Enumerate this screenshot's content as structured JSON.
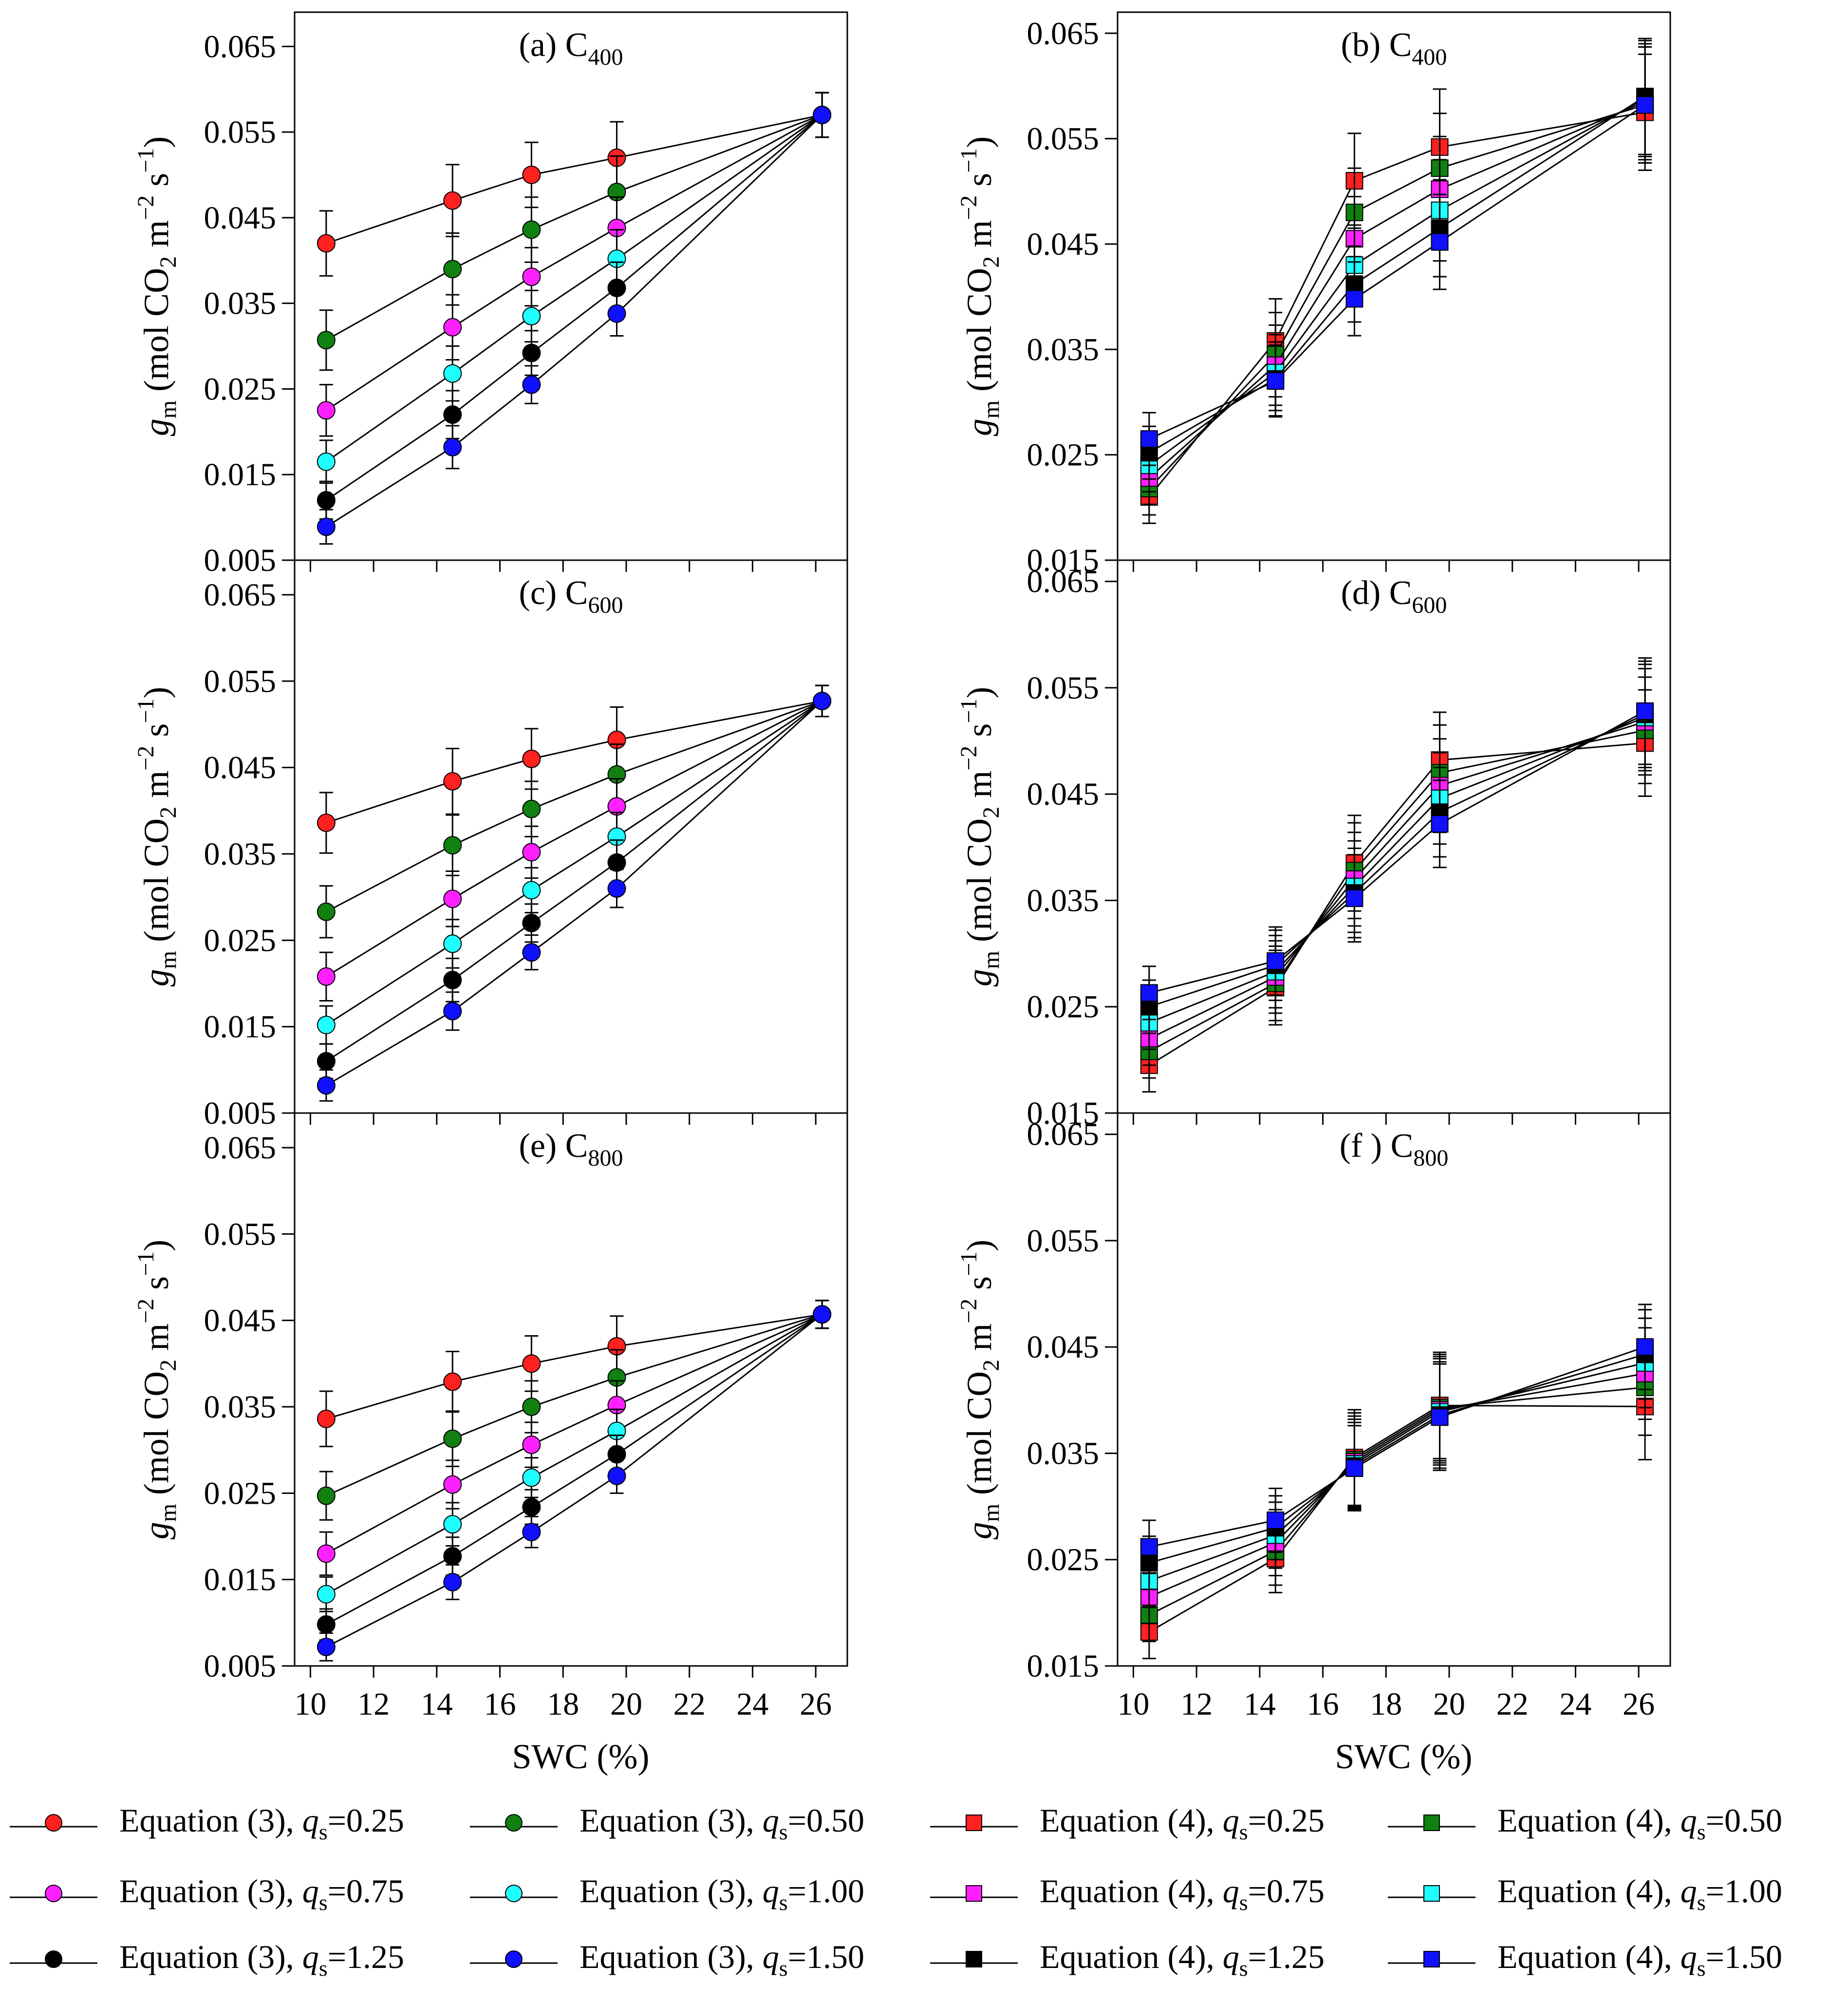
{
  "x_axis": {
    "label": "SWC (%)",
    "ticks": [
      10,
      12,
      14,
      16,
      18,
      20,
      22,
      24,
      26
    ],
    "range": [
      9.5,
      27.0
    ]
  },
  "y_axis_label": {
    "symbol": "g",
    "symbol_sub": "m",
    "unit_open": " (mol CO",
    "unit_co2_sub": "2",
    "unit_m": " m",
    "unit_m_exp": "−2",
    "unit_s": " s",
    "unit_s_exp": "−1",
    "unit_close": ")"
  },
  "colors": {
    "qs_0.25": "#ff2020",
    "qs_0.50": "#108010",
    "qs_0.75": "#ff20ff",
    "qs_1.00": "#20ffff",
    "qs_1.25": "#000000",
    "qs_1.50": "#1010ff"
  },
  "legend": {
    "entries": [
      {
        "equation": "Equation (3), ",
        "q": "q",
        "sub": "s",
        "value": "=0.25",
        "marker": "circle",
        "color_key": "qs_0.25"
      },
      {
        "equation": "Equation (3), ",
        "q": "q",
        "sub": "s",
        "value": "=0.50",
        "marker": "circle",
        "color_key": "qs_0.50"
      },
      {
        "equation": "Equation (4), ",
        "q": "q",
        "sub": "s",
        "value": "=0.25",
        "marker": "square",
        "color_key": "qs_0.25"
      },
      {
        "equation": "Equation (4), ",
        "q": "q",
        "sub": "s",
        "value": "=0.50",
        "marker": "square",
        "color_key": "qs_0.50"
      },
      {
        "equation": "Equation (3), ",
        "q": "q",
        "sub": "s",
        "value": "=0.75",
        "marker": "circle",
        "color_key": "qs_0.75"
      },
      {
        "equation": "Equation (3), ",
        "q": "q",
        "sub": "s",
        "value": "=1.00",
        "marker": "circle",
        "color_key": "qs_1.00"
      },
      {
        "equation": "Equation (4), ",
        "q": "q",
        "sub": "s",
        "value": "=0.75",
        "marker": "square",
        "color_key": "qs_0.75"
      },
      {
        "equation": "Equation (4), ",
        "q": "q",
        "sub": "s",
        "value": "=1.00",
        "marker": "square",
        "color_key": "qs_1.00"
      },
      {
        "equation": "Equation (3), ",
        "q": "q",
        "sub": "s",
        "value": "=1.25",
        "marker": "circle",
        "color_key": "qs_1.25"
      },
      {
        "equation": "Equation (3), ",
        "q": "q",
        "sub": "s",
        "value": "=1.50",
        "marker": "circle",
        "color_key": "qs_1.50"
      },
      {
        "equation": "Equation (4), ",
        "q": "q",
        "sub": "s",
        "value": "=1.25",
        "marker": "square",
        "color_key": "qs_1.25"
      },
      {
        "equation": "Equation (4), ",
        "q": "q",
        "sub": "s",
        "value": "=1.50",
        "marker": "square",
        "color_key": "qs_1.50"
      }
    ]
  },
  "chart_data": [
    {
      "type": "line",
      "panel": "a",
      "title_prefix": "(a) C",
      "title_sub": "400",
      "marker": "circle",
      "x": [
        10.5,
        14.5,
        17.0,
        19.7,
        26.2
      ],
      "ylim": [
        0.005,
        0.069
      ],
      "yticks": [
        "0.005",
        "0.015",
        "0.025",
        "0.035",
        "0.045",
        "0.055",
        "0.065"
      ],
      "series": [
        {
          "color_key": "qs_0.25",
          "values": [
            0.042,
            0.047,
            0.05,
            0.052,
            0.057
          ],
          "errors": [
            0.0038,
            0.0042,
            0.0038,
            0.0042,
            0.0026
          ]
        },
        {
          "color_key": "qs_0.50",
          "values": [
            0.0307,
            0.039,
            0.0436,
            0.048,
            0.057
          ],
          "errors": [
            0.0035,
            0.0042,
            0.0038,
            0.0042,
            0.0026
          ]
        },
        {
          "color_key": "qs_0.75",
          "values": [
            0.0225,
            0.0322,
            0.0381,
            0.0438,
            0.057
          ],
          "errors": [
            0.003,
            0.0038,
            0.0034,
            0.0036,
            0.0026
          ]
        },
        {
          "color_key": "qs_1.00",
          "values": [
            0.0165,
            0.0268,
            0.0335,
            0.0402,
            0.057
          ],
          "errors": [
            0.0025,
            0.0032,
            0.003,
            0.0034,
            0.0026
          ]
        },
        {
          "color_key": "qs_1.25",
          "values": [
            0.012,
            0.022,
            0.0292,
            0.0368,
            0.057
          ],
          "errors": [
            0.0022,
            0.0028,
            0.0026,
            0.003,
            0.0026
          ]
        },
        {
          "color_key": "qs_1.50",
          "values": [
            0.0089,
            0.0182,
            0.0255,
            0.0338,
            0.057
          ],
          "errors": [
            0.002,
            0.0025,
            0.0022,
            0.0026,
            0.0026
          ]
        }
      ]
    },
    {
      "type": "line",
      "panel": "b",
      "title_prefix": "(b) C",
      "title_sub": "400",
      "marker": "square",
      "x": [
        10.5,
        14.5,
        17.0,
        19.7,
        26.2
      ],
      "ylim": [
        0.015,
        0.067
      ],
      "yticks": [
        "0.015",
        "0.025",
        "0.035",
        "0.045",
        "0.055",
        "0.065"
      ],
      "series": [
        {
          "color_key": "qs_0.25",
          "values": [
            0.021,
            0.0358,
            0.051,
            0.0542,
            0.0575
          ],
          "errors": [
            0.0025,
            0.004,
            0.0045,
            0.0055,
            0.0055
          ]
        },
        {
          "color_key": "qs_0.50",
          "values": [
            0.0218,
            0.0345,
            0.048,
            0.0522,
            0.0582
          ],
          "errors": [
            0.0025,
            0.004,
            0.0042,
            0.0052,
            0.0055
          ]
        },
        {
          "color_key": "qs_0.75",
          "values": [
            0.0228,
            0.0335,
            0.0455,
            0.0502,
            0.0585
          ],
          "errors": [
            0.0025,
            0.0038,
            0.004,
            0.005,
            0.0055
          ]
        },
        {
          "color_key": "qs_1.00",
          "values": [
            0.024,
            0.0328,
            0.043,
            0.0482,
            0.0588
          ],
          "errors": [
            0.0025,
            0.0036,
            0.0038,
            0.0048,
            0.0055
          ]
        },
        {
          "color_key": "qs_1.25",
          "values": [
            0.0252,
            0.0322,
            0.0412,
            0.0465,
            0.059
          ],
          "errors": [
            0.0025,
            0.0035,
            0.0036,
            0.0046,
            0.0055
          ]
        },
        {
          "color_key": "qs_1.50",
          "values": [
            0.0265,
            0.032,
            0.0398,
            0.0452,
            0.0582
          ],
          "errors": [
            0.0025,
            0.0034,
            0.0035,
            0.0045,
            0.0055
          ]
        }
      ]
    },
    {
      "type": "line",
      "panel": "c",
      "title_prefix": "(c) C",
      "title_sub": "600",
      "marker": "circle",
      "x": [
        10.5,
        14.5,
        17.0,
        19.7,
        26.2
      ],
      "ylim": [
        0.005,
        0.069
      ],
      "yticks": [
        "0.005",
        "0.015",
        "0.025",
        "0.035",
        "0.045",
        "0.055",
        "0.065"
      ],
      "series": [
        {
          "color_key": "qs_0.25",
          "values": [
            0.0386,
            0.0434,
            0.046,
            0.0482,
            0.0527
          ],
          "errors": [
            0.0035,
            0.0038,
            0.0035,
            0.0038,
            0.0018
          ]
        },
        {
          "color_key": "qs_0.50",
          "values": [
            0.0283,
            0.036,
            0.0402,
            0.0442,
            0.0527
          ],
          "errors": [
            0.003,
            0.0035,
            0.0032,
            0.0035,
            0.0018
          ]
        },
        {
          "color_key": "qs_0.75",
          "values": [
            0.0208,
            0.0298,
            0.0352,
            0.0405,
            0.0527
          ],
          "errors": [
            0.0028,
            0.0032,
            0.003,
            0.0032,
            0.0018
          ]
        },
        {
          "color_key": "qs_1.00",
          "values": [
            0.0152,
            0.0246,
            0.0308,
            0.037,
            0.0527
          ],
          "errors": [
            0.0022,
            0.0028,
            0.0026,
            0.0028,
            0.0018
          ]
        },
        {
          "color_key": "qs_1.25",
          "values": [
            0.011,
            0.0204,
            0.027,
            0.034,
            0.0527
          ],
          "errors": [
            0.002,
            0.0025,
            0.0022,
            0.0026,
            0.0018
          ]
        },
        {
          "color_key": "qs_1.50",
          "values": [
            0.0082,
            0.0168,
            0.0236,
            0.031,
            0.0527
          ],
          "errors": [
            0.0018,
            0.0022,
            0.002,
            0.0022,
            0.0018
          ]
        }
      ]
    },
    {
      "type": "line",
      "panel": "d",
      "title_prefix": "(d) C",
      "title_sub": "600",
      "marker": "square",
      "x": [
        10.5,
        14.5,
        17.0,
        19.7,
        26.2
      ],
      "ylim": [
        0.015,
        0.067
      ],
      "yticks": [
        "0.015",
        "0.025",
        "0.035",
        "0.045",
        "0.055",
        "0.065"
      ],
      "series": [
        {
          "color_key": "qs_0.25",
          "values": [
            0.0195,
            0.0268,
            0.0385,
            0.0482,
            0.0498
          ],
          "errors": [
            0.0025,
            0.0035,
            0.0045,
            0.0045,
            0.005
          ]
        },
        {
          "color_key": "qs_0.50",
          "values": [
            0.0208,
            0.0272,
            0.0378,
            0.047,
            0.051
          ],
          "errors": [
            0.0025,
            0.0035,
            0.0045,
            0.0045,
            0.005
          ]
        },
        {
          "color_key": "qs_0.75",
          "values": [
            0.022,
            0.0278,
            0.037,
            0.0458,
            0.0518
          ],
          "errors": [
            0.0025,
            0.0034,
            0.0044,
            0.0044,
            0.005
          ]
        },
        {
          "color_key": "qs_1.00",
          "values": [
            0.0235,
            0.0283,
            0.0363,
            0.0446,
            0.0522
          ],
          "errors": [
            0.0025,
            0.0034,
            0.0043,
            0.0043,
            0.005
          ]
        },
        {
          "color_key": "qs_1.25",
          "values": [
            0.025,
            0.0289,
            0.0357,
            0.0433,
            0.0525
          ],
          "errors": [
            0.0025,
            0.0033,
            0.0042,
            0.0042,
            0.005
          ]
        },
        {
          "color_key": "qs_1.50",
          "values": [
            0.0263,
            0.0293,
            0.0352,
            0.0422,
            0.0528
          ],
          "errors": [
            0.0025,
            0.0032,
            0.0041,
            0.0041,
            0.005
          ]
        }
      ]
    },
    {
      "type": "line",
      "panel": "e",
      "title_prefix": "(e) C",
      "title_sub": "800",
      "marker": "circle",
      "x": [
        10.5,
        14.5,
        17.0,
        19.7,
        26.2
      ],
      "ylim": [
        0.005,
        0.069
      ],
      "yticks": [
        "0.005",
        "0.015",
        "0.025",
        "0.035",
        "0.045",
        "0.055",
        "0.065"
      ],
      "series": [
        {
          "color_key": "qs_0.25",
          "values": [
            0.0336,
            0.0379,
            0.04,
            0.042,
            0.0457
          ],
          "errors": [
            0.0032,
            0.0035,
            0.0032,
            0.0035,
            0.0016
          ]
        },
        {
          "color_key": "qs_0.50",
          "values": [
            0.0247,
            0.0313,
            0.035,
            0.0384,
            0.0457
          ],
          "errors": [
            0.0028,
            0.0032,
            0.003,
            0.0032,
            0.0016
          ]
        },
        {
          "color_key": "qs_0.75",
          "values": [
            0.018,
            0.026,
            0.0306,
            0.0352,
            0.0457
          ],
          "errors": [
            0.0025,
            0.0028,
            0.0026,
            0.0028,
            0.0016
          ]
        },
        {
          "color_key": "qs_1.00",
          "values": [
            0.0133,
            0.0214,
            0.0268,
            0.0322,
            0.0457
          ],
          "errors": [
            0.002,
            0.0025,
            0.0023,
            0.0025,
            0.0016
          ]
        },
        {
          "color_key": "qs_1.25",
          "values": [
            0.0098,
            0.0177,
            0.0234,
            0.0295,
            0.0457
          ],
          "errors": [
            0.0018,
            0.0022,
            0.002,
            0.0022,
            0.0016
          ]
        },
        {
          "color_key": "qs_1.50",
          "values": [
            0.0072,
            0.0147,
            0.0205,
            0.027,
            0.0457
          ],
          "errors": [
            0.0016,
            0.002,
            0.0018,
            0.002,
            0.0016
          ]
        }
      ]
    },
    {
      "type": "line",
      "panel": "f",
      "title_prefix": "(f ) C",
      "title_sub": "800",
      "marker": "square",
      "x": [
        10.5,
        14.5,
        17.0,
        19.7,
        26.2
      ],
      "ylim": [
        0.015,
        0.067
      ],
      "yticks": [
        "0.015",
        "0.025",
        "0.035",
        "0.045",
        "0.055",
        "0.065"
      ],
      "series": [
        {
          "color_key": "qs_0.25",
          "values": [
            0.0182,
            0.0251,
            0.0346,
            0.0395,
            0.0394
          ],
          "errors": [
            0.0025,
            0.0032,
            0.0045,
            0.005,
            0.005
          ]
        },
        {
          "color_key": "qs_0.50",
          "values": [
            0.0198,
            0.0258,
            0.0344,
            0.0393,
            0.0412
          ],
          "errors": [
            0.0025,
            0.0032,
            0.0044,
            0.005,
            0.0045
          ]
        },
        {
          "color_key": "qs_0.75",
          "values": [
            0.0215,
            0.0266,
            0.0342,
            0.0391,
            0.0425
          ],
          "errors": [
            0.0025,
            0.0031,
            0.0043,
            0.005,
            0.0043
          ]
        },
        {
          "color_key": "qs_1.00",
          "values": [
            0.023,
            0.0273,
            0.034,
            0.0389,
            0.0435
          ],
          "errors": [
            0.0025,
            0.0031,
            0.0042,
            0.005,
            0.0042
          ]
        },
        {
          "color_key": "qs_1.25",
          "values": [
            0.0247,
            0.028,
            0.0338,
            0.0386,
            0.0443
          ],
          "errors": [
            0.0025,
            0.003,
            0.0041,
            0.005,
            0.0042
          ]
        },
        {
          "color_key": "qs_1.50",
          "values": [
            0.0262,
            0.0287,
            0.0336,
            0.0384,
            0.045
          ],
          "errors": [
            0.0025,
            0.003,
            0.004,
            0.005,
            0.004
          ]
        }
      ]
    }
  ]
}
